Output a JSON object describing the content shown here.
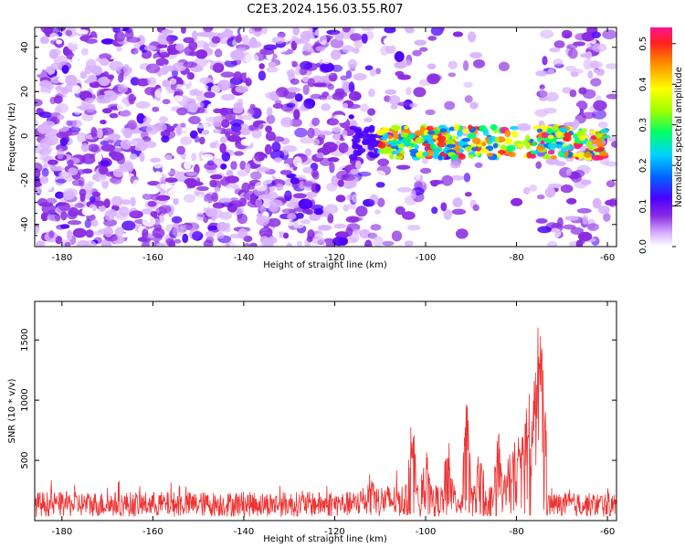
{
  "chart_data": [
    {
      "type": "heatmap",
      "title": "C2E3.2024.156.03.55.R07",
      "xlabel": "Height of straight line (km)",
      "ylabel": "Frequency (Hz)",
      "xlim": [
        -186,
        -58
      ],
      "ylim": [
        -50,
        49
      ],
      "x_ticks": [
        "-180",
        "-160",
        "-140",
        "-120",
        "-100",
        "-80",
        "-60"
      ],
      "y_ticks": [
        "-40",
        "-20",
        "0",
        "20",
        "40"
      ],
      "colorbar": {
        "label": "Normalized spectral amplitude",
        "range": [
          0,
          0.54
        ],
        "ticks": [
          "0.0",
          "0.1",
          "0.2",
          "0.3",
          "0.4",
          "0.5"
        ]
      },
      "signal_band": {
        "x_start": -116,
        "x_end": -60,
        "freq_center": -3,
        "freq_halfwidth": 7
      }
    },
    {
      "type": "line",
      "xlabel": "Height of straight line (km)",
      "ylabel": "SNR (10 * v/v)",
      "xlim": [
        -186,
        -58
      ],
      "ylim": [
        0,
        1820
      ],
      "x_ticks": [
        "-180",
        "-160",
        "-140",
        "-120",
        "-100",
        "-80",
        "-60"
      ],
      "y_ticks": [
        "500",
        "1000",
        "1500"
      ],
      "color": "#ee3333",
      "baseline_noise": [
        80,
        240
      ],
      "peaks": [
        {
          "x": -112,
          "y": 450
        },
        {
          "x": -103,
          "y": 900
        },
        {
          "x": -100,
          "y": 650
        },
        {
          "x": -95,
          "y": 760
        },
        {
          "x": -91,
          "y": 1050
        },
        {
          "x": -88,
          "y": 720
        },
        {
          "x": -84,
          "y": 780
        },
        {
          "x": -80,
          "y": 900
        },
        {
          "x": -78,
          "y": 1050
        },
        {
          "x": -76,
          "y": 1250
        },
        {
          "x": -75,
          "y": 1820
        },
        {
          "x": -74.3,
          "y": 1300
        }
      ]
    }
  ],
  "colors": {
    "colormap": [
      "#ffffff",
      "#d9b3ff",
      "#8a2be2",
      "#4b00ff",
      "#0066ff",
      "#00d5ff",
      "#00ff66",
      "#a0ff00",
      "#ffff00",
      "#ff8800",
      "#ff2020",
      "#ff1493"
    ],
    "snr_line": "#ee3333"
  }
}
